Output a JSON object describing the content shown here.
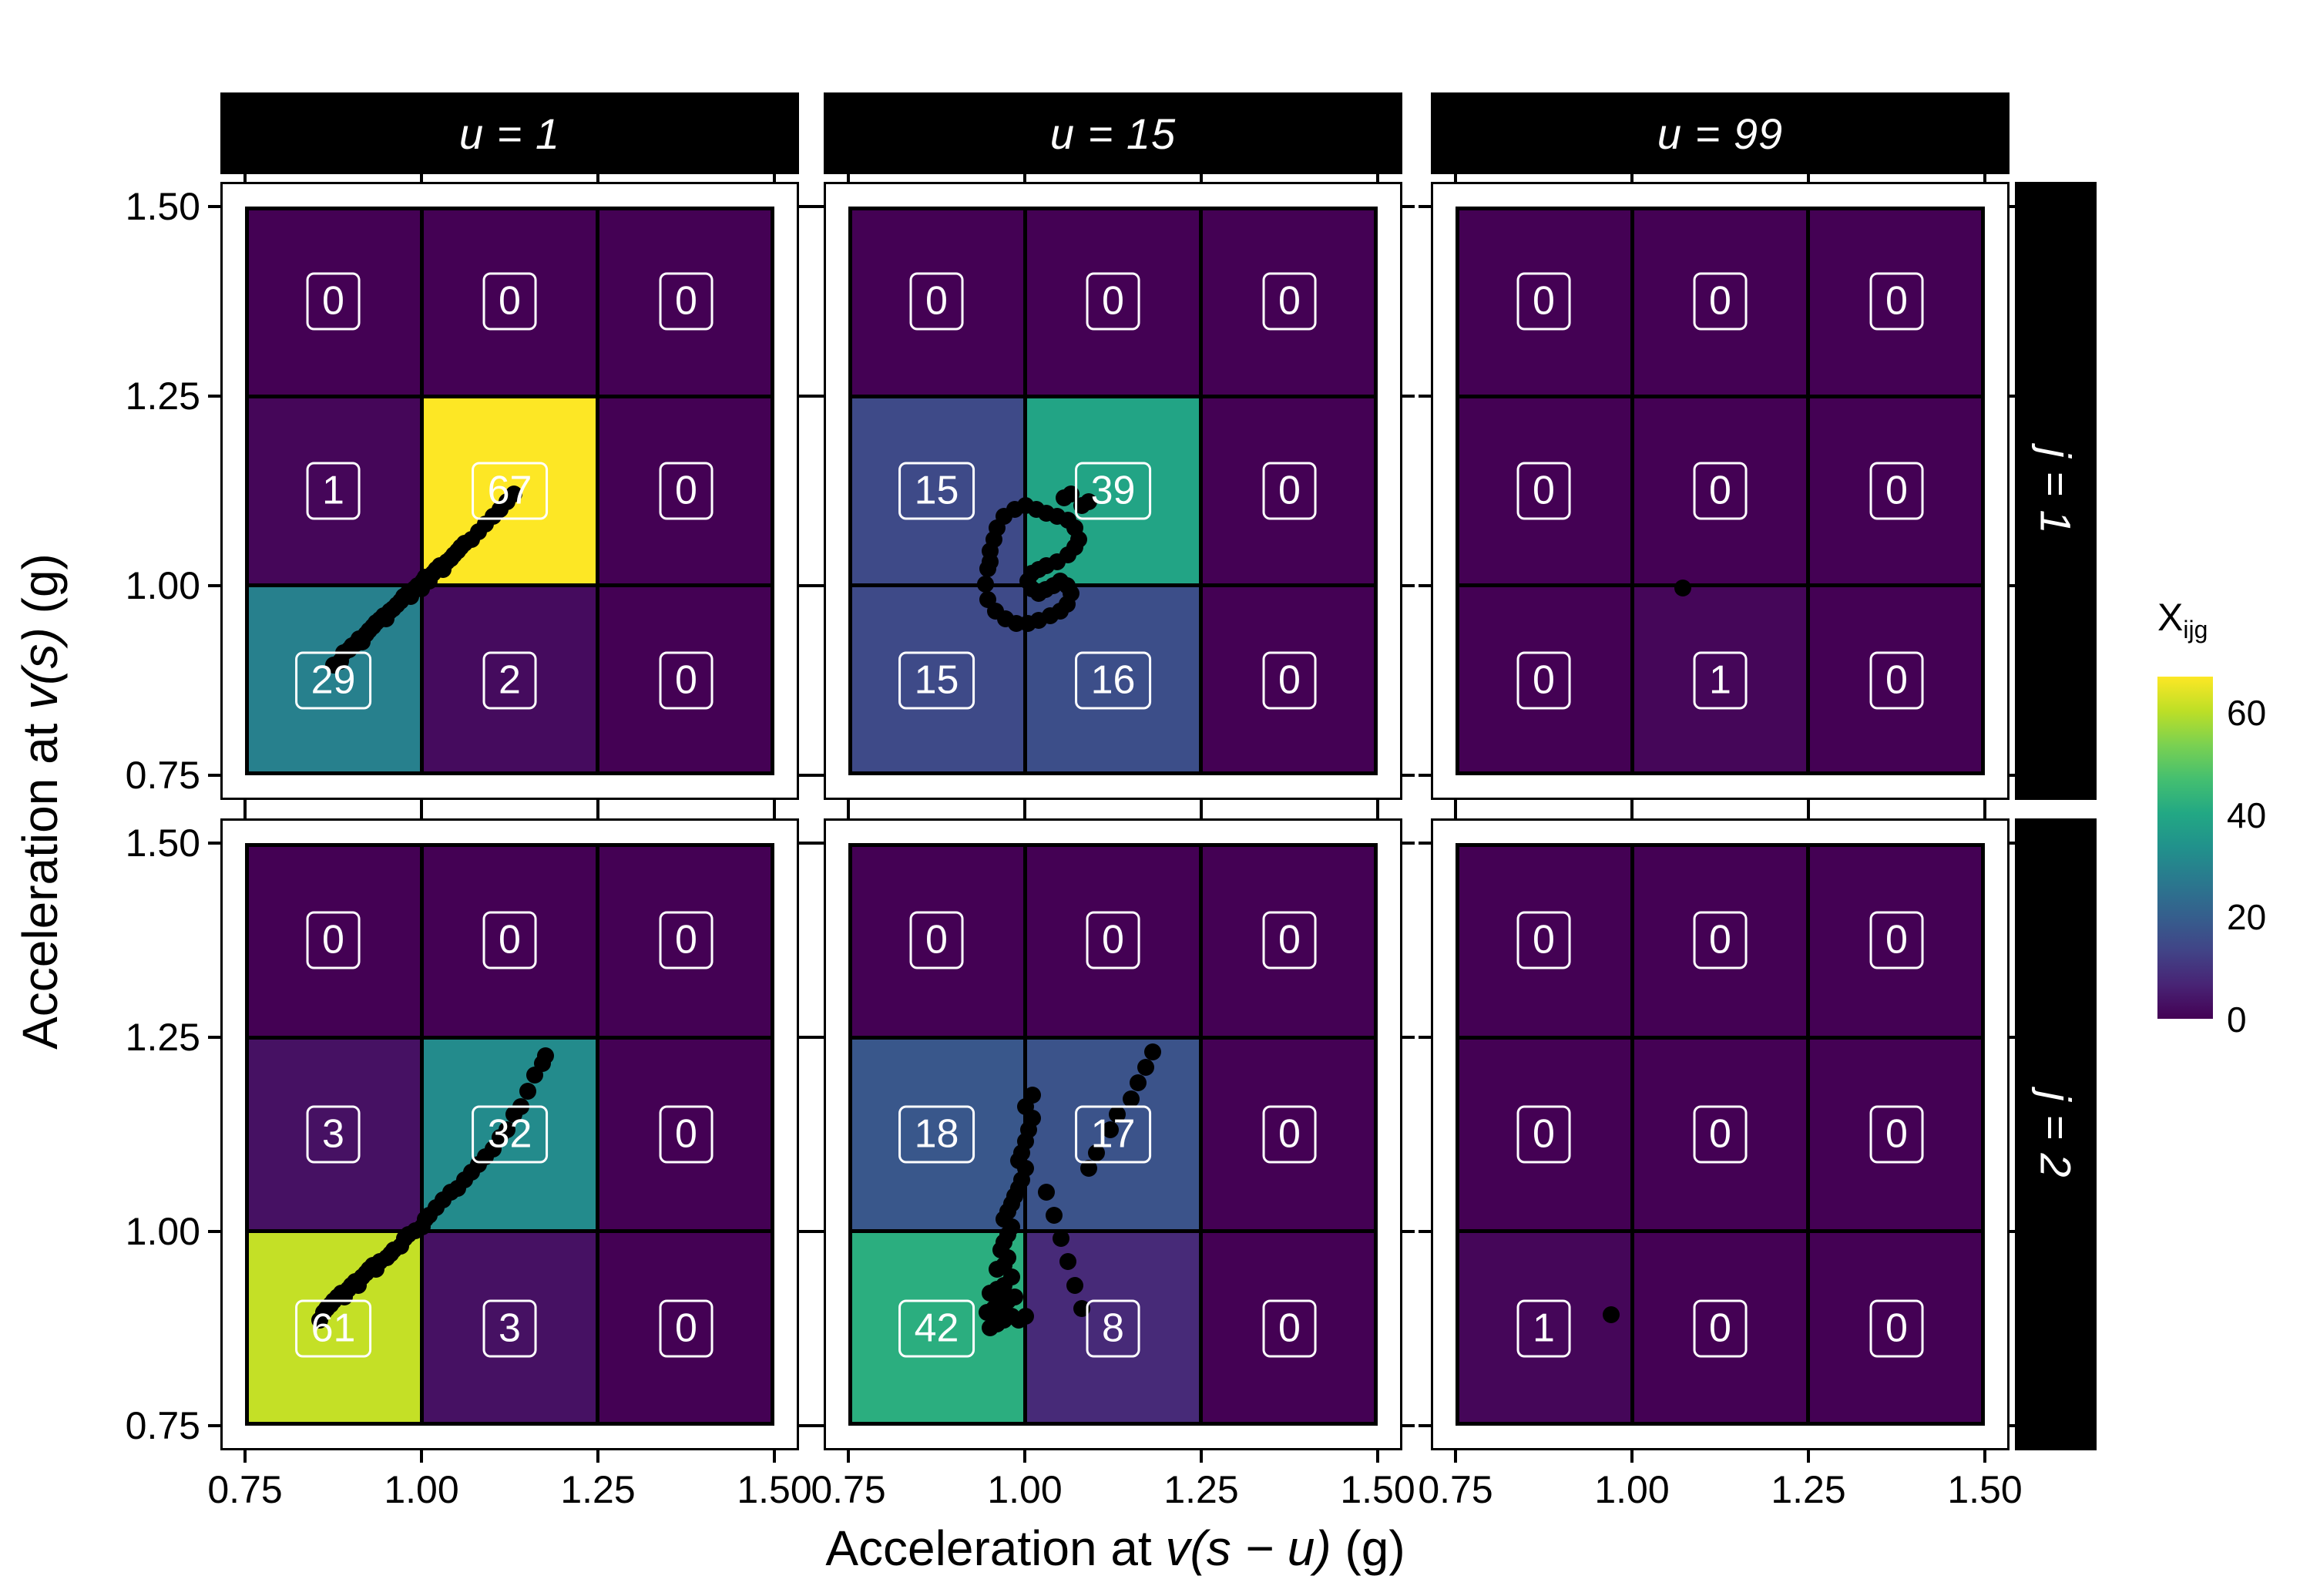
{
  "chart_data": {
    "type": "heatmap",
    "title": "",
    "xlabel": "Acceleration at v(s − u) (g)",
    "ylabel": "Acceleration at v(s) (g)",
    "xlabel_parts": {
      "prefix": "Acceleration at ",
      "math": "v(s − u)",
      "suffix": " (g)"
    },
    "ylabel_parts": {
      "prefix": "Acceleration at ",
      "math": "v(s)",
      "suffix": " (g)"
    },
    "x_tick_labels": [
      "0.75",
      "1.00",
      "1.25",
      "1.50"
    ],
    "y_tick_labels": [
      "0.75",
      "1.00",
      "1.25",
      "1.50"
    ],
    "x_breaks": [
      0.75,
      1.0,
      1.25,
      1.5
    ],
    "y_breaks": [
      0.75,
      1.0,
      1.25,
      1.5
    ],
    "bin_edges": [
      0.75,
      1.0,
      1.25,
      1.5
    ],
    "facet_cols": [
      "u = 1",
      "u = 15",
      "u  = 99"
    ],
    "facet_rows": [
      "j = 1",
      "j = 2"
    ],
    "fill_legend": {
      "title_main": "X",
      "title_sub": "ijg",
      "tick_values": [
        0,
        20,
        40,
        60
      ],
      "limits": [
        0,
        67
      ]
    },
    "colormap": "viridis",
    "viridis_stops": [
      [
        0.0,
        "#440154"
      ],
      [
        0.1,
        "#482475"
      ],
      [
        0.2,
        "#414487"
      ],
      [
        0.3,
        "#355f8d"
      ],
      [
        0.4,
        "#2a788e"
      ],
      [
        0.5,
        "#21918c"
      ],
      [
        0.6,
        "#22a884"
      ],
      [
        0.7,
        "#44bf70"
      ],
      [
        0.8,
        "#7ad151"
      ],
      [
        0.9,
        "#bddf26"
      ],
      [
        1.0,
        "#fde725"
      ]
    ],
    "panels": [
      {
        "row": "j = 1",
        "col": "u = 1",
        "counts": [
          [
            0,
            0,
            0
          ],
          [
            1,
            67,
            0
          ],
          [
            29,
            2,
            0
          ]
        ],
        "points": [
          [
            0.875,
            0.895
          ],
          [
            0.885,
            0.9
          ],
          [
            0.89,
            0.912
          ],
          [
            0.897,
            0.916
          ],
          [
            0.902,
            0.921
          ],
          [
            0.907,
            0.924
          ],
          [
            0.912,
            0.93
          ],
          [
            0.916,
            0.926
          ],
          [
            0.921,
            0.936
          ],
          [
            0.926,
            0.941
          ],
          [
            0.931,
            0.946
          ],
          [
            0.936,
            0.951
          ],
          [
            0.941,
            0.955
          ],
          [
            0.946,
            0.96
          ],
          [
            0.95,
            0.956
          ],
          [
            0.955,
            0.966
          ],
          [
            0.96,
            0.97
          ],
          [
            0.965,
            0.975
          ],
          [
            0.97,
            0.98
          ],
          [
            0.975,
            0.986
          ],
          [
            0.98,
            0.99
          ],
          [
            0.985,
            0.986
          ],
          [
            0.99,
            0.996
          ],
          [
            0.995,
            1.0
          ],
          [
            1.0,
            0.996
          ],
          [
            1.002,
            1.006
          ],
          [
            1.006,
            1.011
          ],
          [
            1.011,
            1.006
          ],
          [
            1.016,
            1.016
          ],
          [
            1.021,
            1.021
          ],
          [
            1.026,
            1.026
          ],
          [
            1.031,
            1.021
          ],
          [
            1.036,
            1.031
          ],
          [
            1.041,
            1.036
          ],
          [
            1.046,
            1.041
          ],
          [
            1.051,
            1.046
          ],
          [
            1.056,
            1.051
          ],
          [
            1.061,
            1.056
          ],
          [
            1.071,
            1.061
          ],
          [
            1.081,
            1.071
          ],
          [
            1.091,
            1.081
          ],
          [
            1.101,
            1.091
          ],
          [
            1.111,
            1.101
          ],
          [
            1.121,
            1.111
          ],
          [
            1.131,
            1.121
          ]
        ]
      },
      {
        "row": "j = 1",
        "col": "u = 15",
        "counts": [
          [
            0,
            0,
            0
          ],
          [
            15,
            39,
            0
          ],
          [
            15,
            16,
            0
          ]
        ],
        "points": [
          [
            0.948,
            1.022
          ],
          [
            0.944,
            1.002
          ],
          [
            0.948,
            0.982
          ],
          [
            0.958,
            0.966
          ],
          [
            0.973,
            0.956
          ],
          [
            0.988,
            0.95
          ],
          [
            1.004,
            0.95
          ],
          [
            1.02,
            0.954
          ],
          [
            1.036,
            0.96
          ],
          [
            1.05,
            0.966
          ],
          [
            1.06,
            0.976
          ],
          [
            1.066,
            0.99
          ],
          [
            1.06,
            1.0
          ],
          [
            1.05,
            1.006
          ],
          [
            1.04,
            1.0
          ],
          [
            1.03,
            0.995
          ],
          [
            1.02,
            0.99
          ],
          [
            1.01,
            0.996
          ],
          [
            1.004,
            1.006
          ],
          [
            1.01,
            1.016
          ],
          [
            1.02,
            1.021
          ],
          [
            1.031,
            1.026
          ],
          [
            1.046,
            1.031
          ],
          [
            1.061,
            1.041
          ],
          [
            1.071,
            1.051
          ],
          [
            1.076,
            1.061
          ],
          [
            1.071,
            1.076
          ],
          [
            1.061,
            1.086
          ],
          [
            1.046,
            1.091
          ],
          [
            1.031,
            1.096
          ],
          [
            1.016,
            1.101
          ],
          [
            1.001,
            1.106
          ],
          [
            0.986,
            1.101
          ],
          [
            0.971,
            1.091
          ],
          [
            0.961,
            1.076
          ],
          [
            0.956,
            1.061
          ],
          [
            0.951,
            1.046
          ],
          [
            0.951,
            1.031
          ],
          [
            1.056,
            1.116
          ],
          [
            1.066,
            1.121
          ],
          [
            1.081,
            1.106
          ],
          [
            1.091,
            1.111
          ]
        ]
      },
      {
        "row": "j = 1",
        "col": "u = 99",
        "counts": [
          [
            0,
            0,
            0
          ],
          [
            0,
            0,
            0
          ],
          [
            0,
            1,
            0
          ]
        ],
        "points": [
          [
            1.072,
            0.997
          ]
        ]
      },
      {
        "row": "j = 2",
        "col": "u = 1",
        "counts": [
          [
            0,
            0,
            0
          ],
          [
            3,
            32,
            0
          ],
          [
            61,
            3,
            0
          ]
        ],
        "points": [
          [
            0.856,
            0.886
          ],
          [
            0.861,
            0.896
          ],
          [
            0.866,
            0.901
          ],
          [
            0.871,
            0.906
          ],
          [
            0.876,
            0.911
          ],
          [
            0.881,
            0.916
          ],
          [
            0.886,
            0.921
          ],
          [
            0.891,
            0.916
          ],
          [
            0.896,
            0.926
          ],
          [
            0.901,
            0.931
          ],
          [
            0.906,
            0.936
          ],
          [
            0.911,
            0.931
          ],
          [
            0.916,
            0.941
          ],
          [
            0.921,
            0.946
          ],
          [
            0.926,
            0.951
          ],
          [
            0.931,
            0.956
          ],
          [
            0.936,
            0.951
          ],
          [
            0.941,
            0.961
          ],
          [
            0.951,
            0.966
          ],
          [
            0.956,
            0.971
          ],
          [
            0.961,
            0.976
          ],
          [
            0.971,
            0.981
          ],
          [
            0.976,
            0.991
          ],
          [
            0.981,
            0.996
          ],
          [
            0.991,
            1.001
          ],
          [
            1.001,
            1.006
          ],
          [
            1.006,
            1.016
          ],
          [
            1.011,
            1.021
          ],
          [
            1.021,
            1.031
          ],
          [
            1.031,
            1.041
          ],
          [
            1.041,
            1.051
          ],
          [
            1.051,
            1.056
          ],
          [
            1.061,
            1.066
          ],
          [
            1.071,
            1.076
          ],
          [
            1.081,
            1.086
          ],
          [
            1.091,
            1.096
          ],
          [
            1.101,
            1.106
          ],
          [
            1.111,
            1.121
          ],
          [
            1.121,
            1.131
          ],
          [
            1.131,
            1.151
          ],
          [
            1.141,
            1.161
          ],
          [
            1.151,
            1.181
          ],
          [
            1.161,
            1.201
          ],
          [
            1.171,
            1.216
          ],
          [
            1.176,
            1.226
          ]
        ]
      },
      {
        "row": "j = 2",
        "col": "u = 15",
        "counts": [
          [
            0,
            0,
            0
          ],
          [
            18,
            17,
            0
          ],
          [
            42,
            8,
            0
          ]
        ],
        "points": [
          [
            0.951,
            0.876
          ],
          [
            0.961,
            0.881
          ],
          [
            0.971,
            0.886
          ],
          [
            0.981,
            0.891
          ],
          [
            0.991,
            0.886
          ],
          [
            1.001,
            0.891
          ],
          [
            0.946,
            0.896
          ],
          [
            0.956,
            0.901
          ],
          [
            0.966,
            0.906
          ],
          [
            0.976,
            0.911
          ],
          [
            0.986,
            0.916
          ],
          [
            0.951,
            0.921
          ],
          [
            0.961,
            0.926
          ],
          [
            0.971,
            0.931
          ],
          [
            0.981,
            0.941
          ],
          [
            0.961,
            0.951
          ],
          [
            0.971,
            0.956
          ],
          [
            0.976,
            0.966
          ],
          [
            0.966,
            0.976
          ],
          [
            0.971,
            0.986
          ],
          [
            0.976,
            0.996
          ],
          [
            0.981,
            1.006
          ],
          [
            0.971,
            1.016
          ],
          [
            0.976,
            1.026
          ],
          [
            0.981,
            1.036
          ],
          [
            0.986,
            1.046
          ],
          [
            0.991,
            1.056
          ],
          [
            0.996,
            1.066
          ],
          [
            1.001,
            1.081
          ],
          [
            0.991,
            1.091
          ],
          [
            0.996,
            1.101
          ],
          [
            1.001,
            1.116
          ],
          [
            1.006,
            1.131
          ],
          [
            1.011,
            1.146
          ],
          [
            1.001,
            1.161
          ],
          [
            1.011,
            1.176
          ],
          [
            1.031,
            1.051
          ],
          [
            1.041,
            1.021
          ],
          [
            1.051,
            0.991
          ],
          [
            1.061,
            0.961
          ],
          [
            1.071,
            0.931
          ],
          [
            1.081,
            0.901
          ],
          [
            1.091,
            1.081
          ],
          [
            1.101,
            1.101
          ],
          [
            1.121,
            1.131
          ],
          [
            1.131,
            1.151
          ],
          [
            1.151,
            1.171
          ],
          [
            1.161,
            1.191
          ],
          [
            1.171,
            1.211
          ],
          [
            1.181,
            1.231
          ]
        ]
      },
      {
        "row": "j = 2",
        "col": "u = 99",
        "counts": [
          [
            0,
            0,
            0
          ],
          [
            0,
            0,
            0
          ],
          [
            1,
            0,
            0
          ]
        ],
        "points": [
          [
            0.971,
            0.893
          ]
        ]
      }
    ]
  }
}
